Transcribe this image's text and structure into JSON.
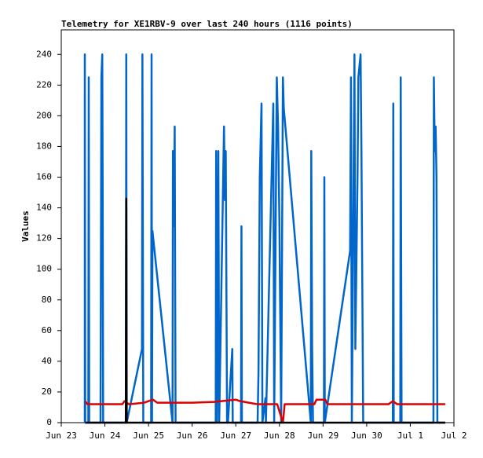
{
  "chart_data": {
    "type": "line",
    "title": "Telemetry for XE1RBV-9 over last 240 hours (1116 points)",
    "y_label": "Values",
    "xlim": [
      0,
      9
    ],
    "xticks": [
      {
        "value": 0,
        "label": "Jun 23"
      },
      {
        "value": 1,
        "label": "Jun 24"
      },
      {
        "value": 2,
        "label": "Jun 25"
      },
      {
        "value": 3,
        "label": "Jun 26"
      },
      {
        "value": 4,
        "label": "Jun 27"
      },
      {
        "value": 5,
        "label": "Jun 28"
      },
      {
        "value": 6,
        "label": "Jun 29"
      },
      {
        "value": 7,
        "label": "Jun 30"
      },
      {
        "value": 8,
        "label": "Jul 1"
      },
      {
        "value": 9,
        "label": "Jul 2"
      }
    ],
    "ylim": [
      0,
      256
    ],
    "yticks": [
      0,
      20,
      40,
      60,
      80,
      100,
      120,
      140,
      160,
      180,
      200,
      220,
      240
    ],
    "grid": false,
    "series": [
      {
        "color": "#0066cc",
        "x": [
          0.54,
          0.54,
          0.55,
          0.62,
          0.63,
          0.64,
          0.9,
          0.91,
          0.92,
          0.94,
          0.95,
          0.96,
          1.48,
          1.49,
          1.5,
          1.85,
          1.86,
          1.88,
          2.06,
          2.07,
          2.08,
          2.09,
          2.55,
          2.56,
          2.58,
          2.6,
          2.62,
          3.54,
          3.55,
          3.57,
          3.6,
          3.62,
          3.73,
          3.75,
          3.77,
          3.8,
          3.82,
          3.92,
          3.93,
          4.12,
          4.13,
          4.14,
          4.5,
          4.52,
          4.55,
          4.59,
          4.61,
          4.68,
          4.69,
          4.86,
          4.88,
          4.94,
          4.97,
          5.0,
          5.04,
          5.08,
          5.1,
          5.72,
          5.73,
          5.75,
          5.77,
          6.02,
          6.03,
          6.04,
          6.62,
          6.64,
          6.66,
          6.72,
          6.74,
          6.79,
          6.81,
          6.86,
          6.88,
          6.92,
          7.6,
          7.61,
          7.62,
          7.77,
          7.78,
          7.8,
          8.53,
          8.54,
          8.56,
          8.58,
          8.6,
          8.62,
          8.8
        ],
        "values": [
          0,
          240,
          0,
          0,
          225,
          0,
          0,
          112,
          225,
          240,
          145,
          0,
          0,
          240,
          0,
          48,
          240,
          0,
          0,
          240,
          0,
          125,
          0,
          177,
          128,
          193,
          0,
          0,
          177,
          0,
          177,
          0,
          193,
          145,
          177,
          0,
          0,
          48,
          0,
          0,
          128,
          0,
          0,
          32,
          160,
          208,
          0,
          16,
          0,
          208,
          0,
          225,
          192,
          130,
          0,
          225,
          205,
          0,
          177,
          48,
          0,
          0,
          160,
          0,
          112,
          225,
          0,
          240,
          48,
          160,
          225,
          240,
          177,
          0,
          0,
          208,
          0,
          0,
          225,
          0,
          0,
          225,
          177,
          193,
          160,
          0,
          0
        ]
      },
      {
        "color": "#dd0000",
        "x": [
          0.55,
          0.6,
          1.4,
          1.45,
          1.55,
          1.9,
          2.1,
          2.2,
          3.0,
          3.5,
          4.0,
          4.1,
          4.3,
          4.5,
          4.95,
          5.08,
          5.12,
          5.8,
          5.85,
          6.05,
          6.1,
          7.5,
          7.6,
          7.7,
          8.8
        ],
        "values": [
          14,
          12,
          12,
          14,
          12,
          13,
          15,
          13,
          13,
          13.5,
          15,
          14,
          13,
          12,
          12,
          0,
          12,
          12,
          15,
          15,
          12,
          12,
          14,
          12,
          12
        ]
      },
      {
        "color": "#000000",
        "x": [
          0.55,
          1.48,
          1.49,
          1.5,
          8.8
        ],
        "values": [
          0,
          0,
          146,
          0,
          0
        ]
      }
    ]
  }
}
